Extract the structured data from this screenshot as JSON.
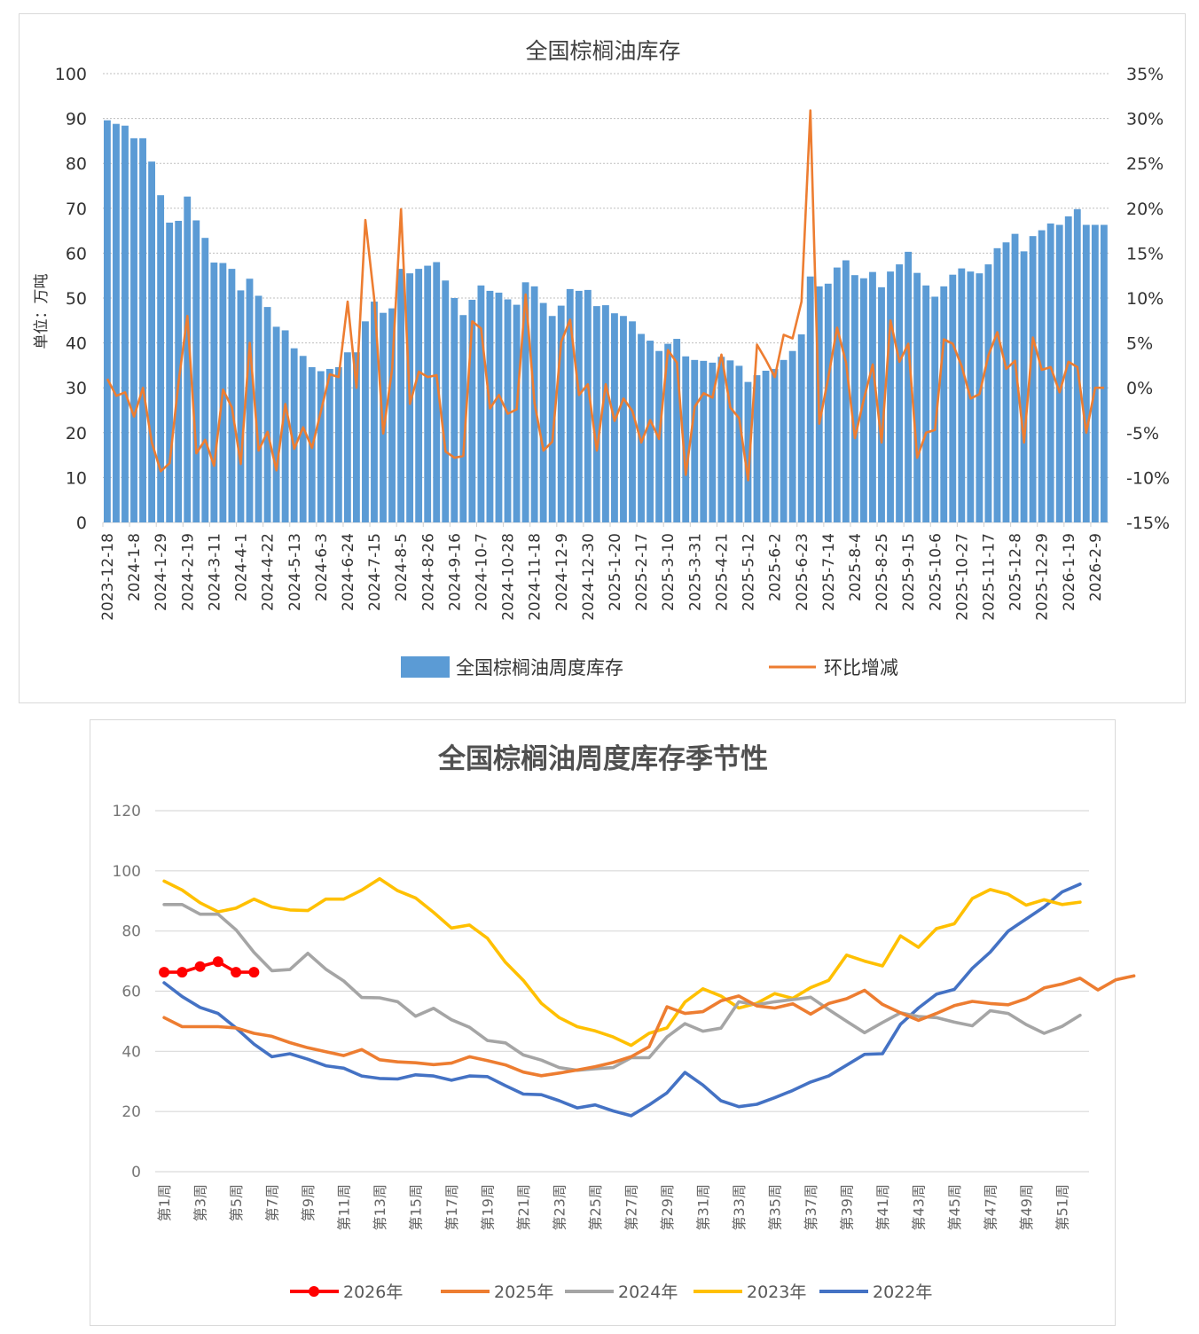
{
  "chart_data": [
    {
      "type": "bar",
      "title": "全国棕榈油库存",
      "ylabel": "单位：万吨",
      "y2label": "",
      "ylim": [
        0,
        100
      ],
      "y_ticks": [
        "0",
        "10",
        "20",
        "30",
        "40",
        "50",
        "60",
        "70",
        "80",
        "90",
        "100"
      ],
      "y2lim": [
        -15,
        35
      ],
      "y2_ticks": [
        "-15%",
        "-10%",
        "-5%",
        "0%",
        "5%",
        "10%",
        "15%",
        "20%",
        "25%",
        "30%",
        "35%"
      ],
      "grid": true,
      "legend_position": "bottom",
      "start_date": "2023-12-18",
      "x_tick_labels": [
        "2023-12-18",
        "2024-1-8",
        "2024-1-29",
        "2024-2-19",
        "2024-3-11",
        "2024-4-1",
        "2024-4-22",
        "2024-5-13",
        "2024-6-3",
        "2024-6-24",
        "2024-7-15",
        "2024-8-5",
        "2024-8-26",
        "2024-9-16",
        "2024-10-7",
        "2024-10-28",
        "2024-11-18",
        "2024-12-9",
        "2024-12-30",
        "2025-1-20",
        "2025-2-17",
        "2025-3-10",
        "2025-3-31",
        "2025-4-21",
        "2025-5-12",
        "2025-6-2",
        "2025-6-23",
        "2025-7-14",
        "2025-8-4",
        "2025-8-25",
        "2025-9-15",
        "2025-10-6",
        "2025-10-27",
        "2025-11-17",
        "2025-12-8",
        "2025-12-29",
        "2026-1-19",
        "2026-2-9"
      ],
      "series": [
        {
          "name": "全国棕榈油周度库存",
          "kind": "bar",
          "axis": "left",
          "color": "#5b9bd5",
          "values": [
            89.6,
            88.8,
            88.4,
            85.6,
            85.6,
            80.4,
            72.9,
            66.8,
            67.2,
            72.6,
            67.3,
            63.4,
            57.9,
            57.8,
            56.5,
            51.7,
            54.3,
            50.5,
            48.0,
            43.6,
            42.8,
            38.8,
            37.1,
            34.6,
            33.7,
            34.2,
            34.6,
            37.9,
            37.9,
            44.8,
            49.2,
            46.7,
            47.7,
            56.5,
            55.5,
            56.5,
            57.2,
            58.0,
            53.9,
            50.0,
            46.2,
            49.6,
            52.8,
            51.6,
            51.2,
            49.7,
            48.5,
            53.5,
            52.6,
            48.9,
            46.0,
            48.3,
            52.0,
            51.6,
            51.8,
            48.2,
            48.4,
            46.6,
            46.0,
            44.8,
            42.0,
            40.5,
            38.2,
            39.8,
            40.9,
            37.0,
            36.2,
            36.0,
            35.6,
            36.9,
            36.1,
            34.9,
            31.3,
            32.8,
            33.8,
            34.2,
            36.2,
            38.2,
            41.9,
            54.8,
            52.6,
            53.2,
            56.8,
            58.4,
            55.1,
            54.4,
            55.8,
            52.4,
            55.9,
            57.5,
            60.3,
            55.6,
            52.8,
            50.3,
            52.6,
            55.2,
            56.6,
            55.9,
            55.5,
            57.5,
            61.1,
            62.4,
            64.3,
            60.4,
            63.8,
            65.1,
            66.6,
            66.3,
            68.2,
            69.8,
            66.3,
            66.3,
            66.3
          ]
        },
        {
          "name": "环比增减",
          "kind": "line",
          "axis": "right",
          "unit": "%",
          "color": "#ed7d31",
          "values": [
            1.0,
            -0.9,
            -0.5,
            -3.2,
            0.0,
            -6.1,
            -9.3,
            -8.4,
            0.6,
            8.0,
            -7.3,
            -5.8,
            -8.7,
            -0.2,
            -2.2,
            -8.5,
            5.0,
            -7.0,
            -4.9,
            -9.2,
            -1.8,
            -6.8,
            -4.4,
            -6.7,
            -2.6,
            1.5,
            1.2,
            9.6,
            0.0,
            18.7,
            9.8,
            -5.1,
            2.1,
            19.9,
            -1.8,
            1.8,
            1.2,
            1.4,
            -7.1,
            -7.8,
            -7.6,
            7.4,
            6.6,
            -2.3,
            -0.8,
            -2.9,
            -2.4,
            10.4,
            -1.7,
            -7.0,
            -6.0,
            5.1,
            7.6,
            -0.8,
            0.4,
            -7.0,
            0.4,
            -3.7,
            -1.2,
            -2.6,
            -6.1,
            -3.6,
            -5.7,
            4.2,
            2.8,
            -9.7,
            -2.1,
            -0.6,
            -1.1,
            3.7,
            -2.2,
            -3.4,
            -10.3,
            4.8,
            3.1,
            1.2,
            5.9,
            5.5,
            9.6,
            30.9,
            -4.0,
            1.1,
            6.7,
            2.8,
            -5.6,
            -1.3,
            2.6,
            -6.1,
            7.5,
            2.9,
            4.9,
            -7.8,
            -5.0,
            -4.7,
            5.4,
            4.9,
            2.4,
            -1.2,
            -0.7,
            3.6,
            6.2,
            2.1,
            3.0,
            -6.1,
            5.6,
            2.0,
            2.3,
            -0.5,
            2.9,
            2.3,
            -5.0,
            0.0,
            0.0
          ]
        }
      ]
    },
    {
      "type": "line",
      "title": "全国棕榈油周度库存季节性",
      "xlabel": "",
      "ylabel": "",
      "ylim": [
        0,
        120
      ],
      "y_ticks": [
        "0",
        "20",
        "40",
        "60",
        "80",
        "100",
        "120"
      ],
      "grid": true,
      "legend_position": "bottom",
      "x_tick_labels": [
        "第1周",
        "第3周",
        "第5周",
        "第7周",
        "第9周",
        "第11周",
        "第13周",
        "第15周",
        "第17周",
        "第19周",
        "第21周",
        "第23周",
        "第25周",
        "第27周",
        "第29周",
        "第31周",
        "第33周",
        "第35周",
        "第37周",
        "第39周",
        "第41周",
        "第43周",
        "第45周",
        "第47周",
        "第49周",
        "第51周"
      ],
      "weeks": 52,
      "series": [
        {
          "name": "2026年",
          "color": "#ff0000",
          "markers": true,
          "values": [
            66.3,
            66.3,
            68.2,
            69.8,
            66.3,
            66.3
          ]
        },
        {
          "name": "2025年",
          "color": "#ed7d31",
          "markers": false,
          "values": [
            51.2,
            48.2,
            48.2,
            48.2,
            47.8,
            46.0,
            45.0,
            42.9,
            41.2,
            39.9,
            38.6,
            40.6,
            37.2,
            36.5,
            36.2,
            35.6,
            36.1,
            38.2,
            36.9,
            35.5,
            33.1,
            31.9,
            32.8,
            33.8,
            34.9,
            36.3,
            38.2,
            41.5,
            54.8,
            52.6,
            53.2,
            56.8,
            58.4,
            55.1,
            54.4,
            55.8,
            52.4,
            55.9,
            57.5,
            60.3,
            55.6,
            52.8,
            50.3,
            52.6,
            55.2,
            56.6,
            55.9,
            55.5,
            57.5,
            61.1,
            62.4,
            64.3,
            60.4,
            63.8,
            65.1
          ]
        },
        {
          "name": "2024年",
          "color": "#a5a5a5",
          "markers": false,
          "values": [
            88.8,
            88.8,
            85.6,
            85.6,
            80.4,
            72.9,
            66.8,
            67.2,
            72.6,
            67.3,
            63.4,
            57.9,
            57.8,
            56.5,
            51.7,
            54.3,
            50.5,
            48.0,
            43.6,
            42.8,
            38.8,
            37.1,
            34.6,
            33.7,
            34.2,
            34.6,
            37.9,
            37.9,
            44.8,
            49.2,
            46.7,
            47.7,
            56.5,
            55.5,
            56.5,
            57.2,
            58.0,
            53.9,
            50.0,
            46.2,
            49.6,
            52.8,
            51.6,
            51.2,
            49.7,
            48.5,
            53.5,
            52.6,
            48.9,
            46.0,
            48.3,
            52.0
          ]
        },
        {
          "name": "2023年",
          "color": "#ffc000",
          "markers": false,
          "values": [
            96.6,
            93.6,
            89.4,
            86.4,
            87.6,
            90.6,
            88.0,
            87.0,
            86.8,
            90.6,
            90.6,
            93.6,
            97.4,
            93.4,
            91.0,
            86.2,
            81.0,
            82.0,
            77.6,
            69.6,
            63.6,
            56.0,
            51.2,
            48.2,
            46.8,
            44.8,
            42.0,
            46.0,
            47.8,
            56.4,
            60.8,
            58.4,
            54.4,
            56.0,
            59.2,
            57.6,
            61.2,
            63.6,
            72.0,
            70.0,
            68.4,
            78.4,
            74.6,
            80.8,
            82.4,
            90.8,
            93.8,
            92.2,
            88.6,
            90.4,
            88.8,
            89.6
          ]
        },
        {
          "name": "2022年",
          "color": "#4472c4",
          "markers": false,
          "values": [
            62.8,
            58.2,
            54.6,
            52.6,
            47.8,
            42.4,
            38.2,
            39.2,
            37.4,
            35.2,
            34.4,
            31.8,
            31.0,
            30.8,
            32.2,
            31.8,
            30.4,
            31.8,
            31.6,
            28.6,
            25.8,
            25.6,
            23.6,
            21.2,
            22.2,
            20.2,
            18.6,
            22.2,
            26.2,
            33.0,
            28.8,
            23.6,
            21.6,
            22.4,
            24.6,
            27.0,
            29.8,
            31.8,
            35.4,
            39.0,
            39.2,
            49.0,
            54.4,
            59.0,
            60.6,
            67.6,
            73.0,
            80.0,
            84.0,
            88.0,
            93.0,
            95.6
          ]
        }
      ]
    }
  ]
}
